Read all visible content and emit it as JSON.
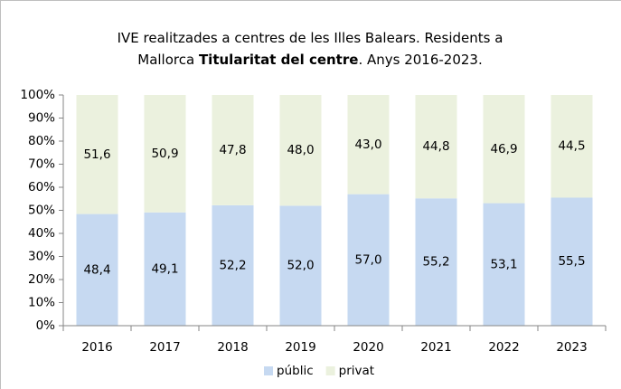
{
  "chart_data": {
    "type": "stacked_bar",
    "title_lines": [
      [
        {
          "text": "IVE realitzades a centres de les Illes Balears. Residents a",
          "bold": false
        }
      ],
      [
        {
          "text": "Mallorca ",
          "bold": false
        },
        {
          "text": "Titularitat del centre",
          "bold": true
        },
        {
          "text": ".  Anys 2016-2023.",
          "bold": false
        }
      ]
    ],
    "categories": [
      "2016",
      "2017",
      "2018",
      "2019",
      "2020",
      "2021",
      "2022",
      "2023"
    ],
    "series": [
      {
        "name": "públic",
        "color": "#c6d9f1",
        "values": [
          48.4,
          49.1,
          52.2,
          52.0,
          57.0,
          55.2,
          53.1,
          55.5
        ],
        "value_labels": [
          "48,4",
          "49,1",
          "52,2",
          "52,0",
          "57,0",
          "55,2",
          "53,1",
          "55,5"
        ]
      },
      {
        "name": "privat",
        "color": "#ebf1de",
        "values": [
          51.6,
          50.9,
          47.8,
          48.0,
          43.0,
          44.8,
          46.9,
          44.5
        ],
        "value_labels": [
          "51,6",
          "50,9",
          "47,8",
          "48,0",
          "43,0",
          "44,8",
          "46,9",
          "44,5"
        ]
      }
    ],
    "ylim": [
      0,
      100
    ],
    "yticks": [
      {
        "value": 0,
        "label": "0%"
      },
      {
        "value": 10,
        "label": "10%"
      },
      {
        "value": 20,
        "label": "20%"
      },
      {
        "value": 30,
        "label": "30%"
      },
      {
        "value": 40,
        "label": "40%"
      },
      {
        "value": 50,
        "label": "50%"
      },
      {
        "value": 60,
        "label": "60%"
      },
      {
        "value": 70,
        "label": "70%"
      },
      {
        "value": 80,
        "label": "80%"
      },
      {
        "value": 90,
        "label": "90%"
      },
      {
        "value": 100,
        "label": "100%"
      }
    ],
    "legend": "bottom"
  }
}
